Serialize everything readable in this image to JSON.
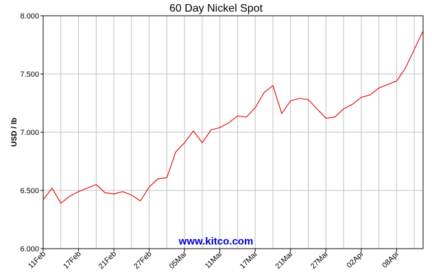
{
  "chart_data": {
    "type": "line",
    "title": "60 Day Nickel Spot",
    "ylabel": "USD / lb",
    "watermark": "www.kitco.com",
    "categories": [
      "11Feb",
      null,
      null,
      null,
      "17Feb",
      null,
      null,
      null,
      "21Feb",
      null,
      null,
      null,
      "27Feb",
      null,
      null,
      null,
      "05Mar",
      null,
      null,
      null,
      "11Mar",
      null,
      null,
      null,
      "17Mar",
      null,
      null,
      null,
      "21Mar",
      null,
      null,
      null,
      "27Mar",
      null,
      null,
      null,
      "02Apr",
      null,
      null,
      null,
      "08Apr",
      null,
      null,
      null
    ],
    "series": [
      {
        "name": "Nickel",
        "color": "#e01010",
        "values": [
          6.42,
          6.52,
          6.39,
          6.45,
          6.49,
          6.52,
          6.55,
          6.48,
          6.47,
          6.49,
          6.46,
          6.41,
          6.53,
          6.6,
          6.61,
          6.83,
          6.91,
          7.01,
          6.91,
          7.02,
          7.04,
          7.08,
          7.14,
          7.13,
          7.21,
          7.34,
          7.4,
          7.16,
          7.27,
          7.29,
          7.28,
          7.2,
          7.12,
          7.13,
          7.2,
          7.24,
          7.3,
          7.32,
          7.38,
          7.41,
          7.44,
          7.55,
          7.71,
          7.87
        ]
      }
    ],
    "ylim": [
      6,
      8
    ],
    "yticks": [
      {
        "value": 6,
        "label": "6.000"
      },
      {
        "value": 6.5,
        "label": "6.500"
      },
      {
        "value": 7,
        "label": "7.000"
      },
      {
        "value": 7.5,
        "label": "7.500"
      },
      {
        "value": 8,
        "label": "8.000"
      }
    ],
    "grid": true
  }
}
